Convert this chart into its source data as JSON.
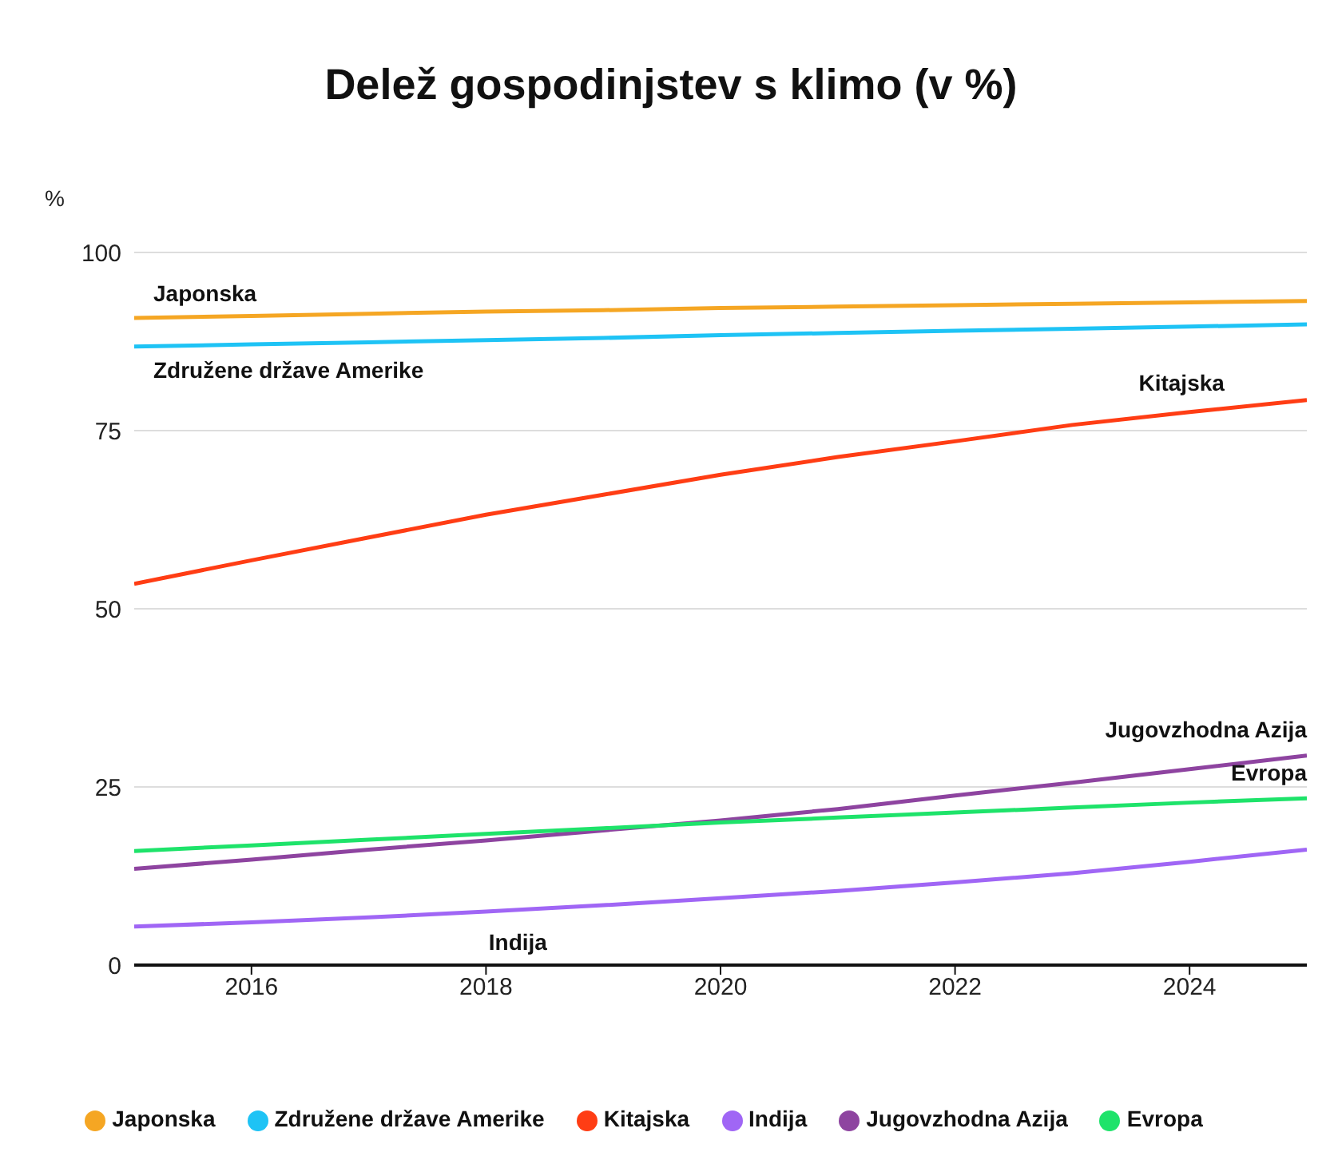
{
  "chart_data": {
    "type": "line",
    "title": "Delež gospodinjstev s klimo (v %)",
    "ylabel": "%",
    "x": [
      2015,
      2016,
      2017,
      2018,
      2019,
      2020,
      2021,
      2022,
      2023,
      2024,
      2025
    ],
    "xlim": [
      2015,
      2025
    ],
    "xticks": [
      2016,
      2018,
      2020,
      2022,
      2024
    ],
    "ylim": [
      0,
      100
    ],
    "yticks": [
      0,
      25,
      50,
      75,
      100
    ],
    "grid": "y",
    "legend": "bottom",
    "marker": "none",
    "line_style": "solid",
    "series": [
      {
        "name": "Japonska",
        "color": "#f5a623",
        "values": [
          90.8,
          91.1,
          91.4,
          91.7,
          91.9,
          92.2,
          92.4,
          92.6,
          92.8,
          93.0,
          93.2
        ]
      },
      {
        "name": "Združene države Amerike",
        "color": "#1ec3f5",
        "values": [
          86.8,
          87.1,
          87.4,
          87.7,
          88.0,
          88.4,
          88.7,
          89.0,
          89.3,
          89.6,
          89.9
        ]
      },
      {
        "name": "Kitajska",
        "color": "#ff3d14",
        "values": [
          53.5,
          56.8,
          60,
          63.2,
          66,
          68.8,
          71.3,
          73.5,
          75.8,
          77.6,
          79.3
        ]
      },
      {
        "name": "Indija",
        "color": "#a066f5",
        "values": [
          5.4,
          6,
          6.7,
          7.5,
          8.4,
          9.4,
          10.4,
          11.6,
          12.9,
          14.5,
          16.2
        ]
      },
      {
        "name": "Jugovzhodna Azija",
        "color": "#8e44a0",
        "values": [
          13.5,
          14.8,
          16.2,
          17.5,
          18.9,
          20.3,
          21.9,
          23.8,
          25.6,
          27.5,
          29.4
        ]
      },
      {
        "name": "Evropa",
        "color": "#1ee36a",
        "values": [
          16,
          16.8,
          17.6,
          18.4,
          19.2,
          20,
          20.7,
          21.4,
          22.1,
          22.8,
          23.4
        ]
      }
    ]
  }
}
